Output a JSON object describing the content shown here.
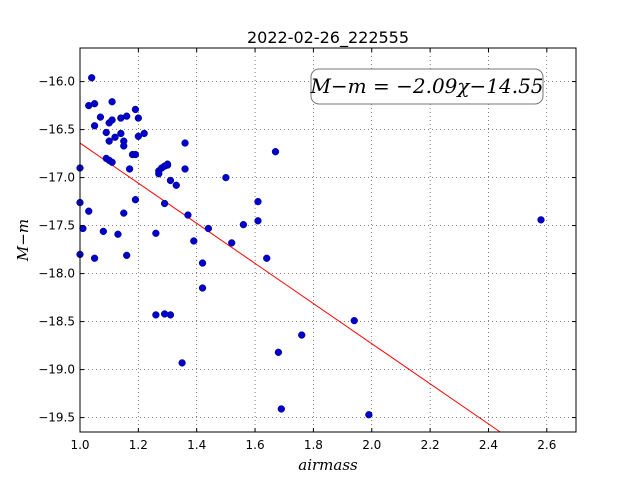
{
  "chart_data": {
    "type": "scatter",
    "title": "2022-02-26_222555",
    "xlabel": "airmass",
    "ylabel": "M−m",
    "xlim": [
      1.0,
      2.7
    ],
    "ylim": [
      -19.65,
      -15.65
    ],
    "xticks": [
      "1.0",
      "1.2",
      "1.4",
      "1.6",
      "1.8",
      "2.0",
      "2.2",
      "2.4",
      "2.6"
    ],
    "yticks": [
      "−16.0",
      "−16.5",
      "−17.0",
      "−17.5",
      "−18.0",
      "−18.5",
      "−19.0",
      "−19.5"
    ],
    "grid": true,
    "annotation": "M−m = −2.09χ−14.55",
    "fit": {
      "slope": -2.09,
      "intercept": -14.55,
      "color": "#ff0000"
    },
    "point_color": "#0000cc",
    "points": [
      [
        1.0,
        -16.9
      ],
      [
        1.0,
        -17.26
      ],
      [
        1.0,
        -17.8
      ],
      [
        1.01,
        -17.53
      ],
      [
        1.03,
        -16.25
      ],
      [
        1.03,
        -17.35
      ],
      [
        1.04,
        -15.96
      ],
      [
        1.05,
        -16.23
      ],
      [
        1.05,
        -16.46
      ],
      [
        1.05,
        -17.84
      ],
      [
        1.07,
        -16.37
      ],
      [
        1.08,
        -17.56
      ],
      [
        1.09,
        -16.8
      ],
      [
        1.09,
        -16.53
      ],
      [
        1.1,
        -16.43
      ],
      [
        1.1,
        -16.62
      ],
      [
        1.1,
        -16.82
      ],
      [
        1.11,
        -16.21
      ],
      [
        1.11,
        -16.4
      ],
      [
        1.11,
        -16.84
      ],
      [
        1.12,
        -16.58
      ],
      [
        1.13,
        -17.59
      ],
      [
        1.14,
        -16.54
      ],
      [
        1.14,
        -16.38
      ],
      [
        1.15,
        -16.62
      ],
      [
        1.15,
        -16.67
      ],
      [
        1.15,
        -17.37
      ],
      [
        1.16,
        -16.36
      ],
      [
        1.16,
        -17.81
      ],
      [
        1.17,
        -16.91
      ],
      [
        1.18,
        -16.76
      ],
      [
        1.19,
        -16.29
      ],
      [
        1.19,
        -17.23
      ],
      [
        1.19,
        -16.76
      ],
      [
        1.2,
        -16.38
      ],
      [
        1.2,
        -16.57
      ],
      [
        1.22,
        -16.54
      ],
      [
        1.26,
        -17.58
      ],
      [
        1.26,
        -18.43
      ],
      [
        1.27,
        -16.93
      ],
      [
        1.27,
        -16.96
      ],
      [
        1.28,
        -16.9
      ],
      [
        1.29,
        -18.42
      ],
      [
        1.29,
        -17.27
      ],
      [
        1.29,
        -16.88
      ],
      [
        1.3,
        -16.86
      ],
      [
        1.3,
        -16.87
      ],
      [
        1.31,
        -17.03
      ],
      [
        1.31,
        -18.43
      ],
      [
        1.33,
        -17.08
      ],
      [
        1.35,
        -18.93
      ],
      [
        1.36,
        -16.64
      ],
      [
        1.36,
        -16.91
      ],
      [
        1.37,
        -17.39
      ],
      [
        1.39,
        -17.66
      ],
      [
        1.42,
        -17.89
      ],
      [
        1.42,
        -18.15
      ],
      [
        1.44,
        -17.53
      ],
      [
        1.5,
        -17.0
      ],
      [
        1.52,
        -17.68
      ],
      [
        1.56,
        -17.49
      ],
      [
        1.61,
        -17.25
      ],
      [
        1.61,
        -17.45
      ],
      [
        1.64,
        -17.84
      ],
      [
        1.67,
        -16.73
      ],
      [
        1.68,
        -18.82
      ],
      [
        1.69,
        -19.41
      ],
      [
        1.76,
        -18.64
      ],
      [
        1.94,
        -18.49
      ],
      [
        1.99,
        -19.47
      ],
      [
        2.58,
        -17.44
      ]
    ]
  }
}
